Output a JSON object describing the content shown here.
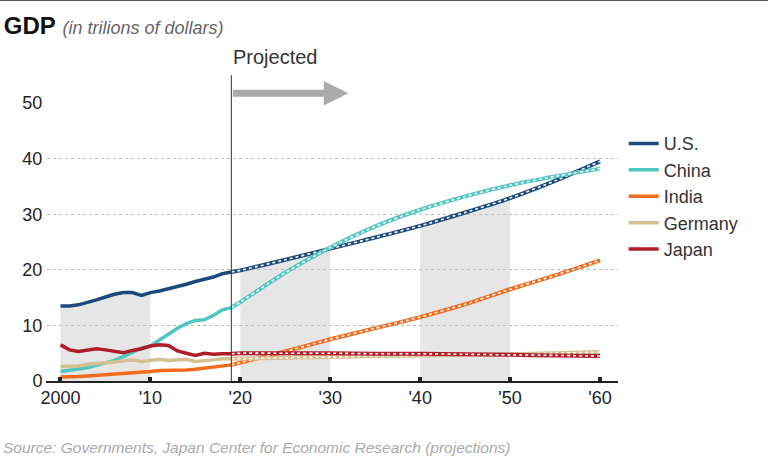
{
  "chart_data": {
    "type": "line",
    "title": "GDP",
    "subtitle": "(in trilions of dollars)",
    "source": "Source: Governments, Japan Center for Economic Research (projections)",
    "projection": {
      "text": "Projected",
      "x": 2019
    },
    "shaded_ranges": [
      [
        2000,
        2010
      ],
      [
        2020,
        2030
      ],
      [
        2040,
        2050
      ]
    ],
    "x": [
      2000,
      2001,
      2002,
      2003,
      2004,
      2005,
      2006,
      2007,
      2008,
      2009,
      2010,
      2011,
      2012,
      2013,
      2014,
      2015,
      2016,
      2017,
      2018,
      2019,
      2020,
      2025,
      2030,
      2035,
      2040,
      2045,
      2050,
      2055,
      2060
    ],
    "series": [
      {
        "name": "U.S.",
        "color": "#1d4a7c",
        "values": [
          13.5,
          13.5,
          13.7,
          14.1,
          14.6,
          15.1,
          15.6,
          15.9,
          15.9,
          15.4,
          15.9,
          16.2,
          16.6,
          16.9,
          17.4,
          17.9,
          18.3,
          18.7,
          19.3,
          19.6,
          19.9,
          21.8,
          23.8,
          25.8,
          27.9,
          30.3,
          32.9,
          36.0,
          39.5
        ]
      },
      {
        "name": "China",
        "color": "#4fc6c0",
        "values": [
          1.7,
          1.9,
          2.1,
          2.4,
          2.8,
          3.2,
          3.7,
          4.4,
          5.1,
          5.9,
          6.3,
          7.3,
          8.4,
          9.5,
          10.3,
          10.9,
          11.0,
          11.8,
          12.8,
          13.2,
          14.2,
          19.5,
          24.0,
          27.8,
          30.8,
          33.2,
          35.2,
          36.8,
          38.2
        ]
      },
      {
        "name": "India",
        "color": "#f26b1d",
        "values": [
          0.7,
          0.7,
          0.8,
          0.9,
          1.0,
          1.1,
          1.2,
          1.4,
          1.4,
          1.5,
          1.7,
          1.9,
          1.9,
          1.9,
          2.0,
          2.1,
          2.3,
          2.6,
          2.7,
          2.9,
          3.3,
          5.3,
          7.5,
          9.5,
          11.5,
          13.8,
          16.5,
          19.0,
          21.7
        ]
      },
      {
        "name": "Germany",
        "color": "#d4c08f",
        "values": [
          2.6,
          2.6,
          2.7,
          3.0,
          3.2,
          3.3,
          3.4,
          3.6,
          3.8,
          3.5,
          3.7,
          3.9,
          3.7,
          3.8,
          3.9,
          3.5,
          3.6,
          3.8,
          4.0,
          4.0,
          4.0,
          4.2,
          4.3,
          4.5,
          4.6,
          4.7,
          4.8,
          5.0,
          5.2
        ]
      },
      {
        "name": "Japan",
        "color": "#b01c2a",
        "values": [
          6.5,
          5.6,
          5.3,
          5.6,
          5.8,
          5.6,
          5.3,
          5.1,
          5.5,
          5.8,
          6.3,
          6.5,
          6.4,
          5.4,
          5.0,
          4.6,
          5.0,
          4.8,
          4.9,
          4.9,
          5.0,
          5.0,
          5.0,
          4.9,
          4.9,
          4.8,
          4.7,
          4.6,
          4.5
        ]
      }
    ],
    "xlim": [
      1998.5,
      2062
    ],
    "xticks": [
      2000,
      {
        "value": 2010,
        "label": "'10"
      },
      {
        "value": 2020,
        "label": "'20"
      },
      {
        "value": 2030,
        "label": "'30"
      },
      {
        "value": 2040,
        "label": "'40"
      },
      {
        "value": 2050,
        "label": "'50"
      },
      {
        "value": 2060,
        "label": "'60"
      }
    ],
    "ylim": [
      0,
      50
    ],
    "yticks": [
      0,
      10,
      20,
      30,
      40,
      50
    ],
    "grid": true,
    "legend": "right"
  }
}
